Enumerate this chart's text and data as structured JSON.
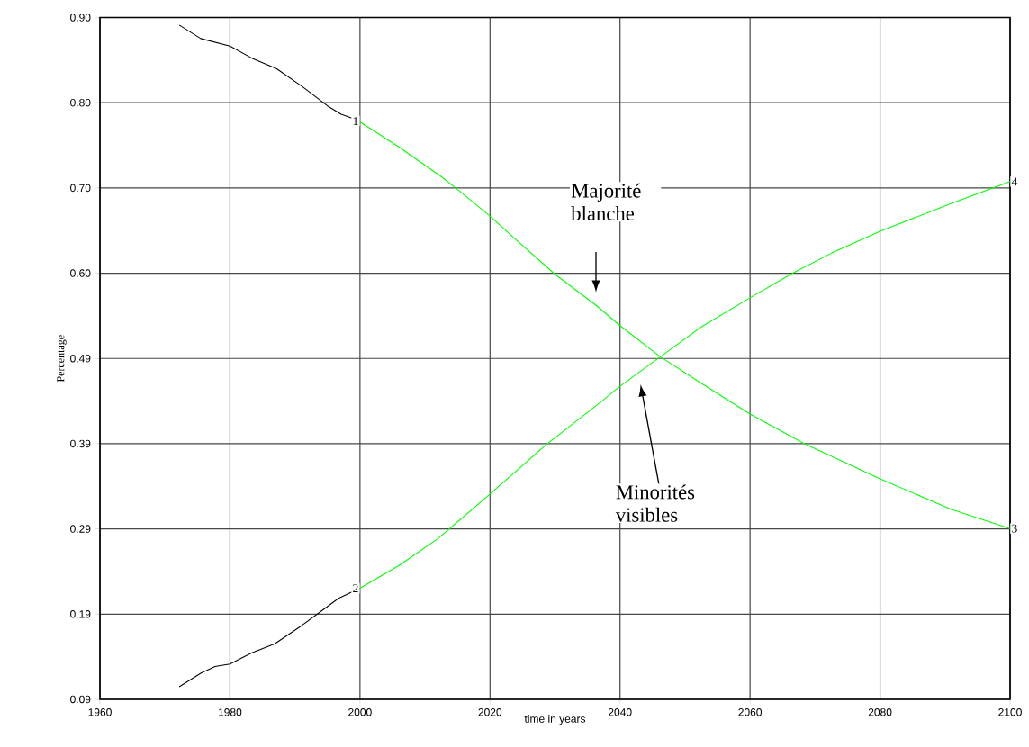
{
  "chart_data": {
    "type": "line",
    "xlabel": "time in years",
    "ylabel": "Percentage",
    "xlim": [
      1960,
      2100
    ],
    "ylim": [
      0.09,
      0.9
    ],
    "xticks": [
      1960,
      1980,
      2000,
      2020,
      2040,
      2060,
      2080,
      2100
    ],
    "yticks": [
      {
        "value": 0.09,
        "label": "0.09"
      },
      {
        "value": 0.19125,
        "label": "0.19"
      },
      {
        "value": 0.2925,
        "label": "0.29"
      },
      {
        "value": 0.39375,
        "label": "0.39"
      },
      {
        "value": 0.495,
        "label": "0.49"
      },
      {
        "value": 0.59625,
        "label": "0.60"
      },
      {
        "value": 0.6975,
        "label": "0.70"
      },
      {
        "value": 0.79875,
        "label": "0.80"
      },
      {
        "value": 0.9,
        "label": "0.90"
      }
    ],
    "grid": true,
    "marker": "none",
    "line_style": "solid",
    "series": [
      {
        "name": "1",
        "color": "#000000",
        "x": [
          1972.2,
          1975.5,
          1980,
          1983.3,
          1987.2,
          1991.1,
          1995,
          1997.1,
          2000
        ],
        "values": [
          0.891,
          0.875,
          0.866,
          0.852,
          0.839,
          0.818,
          0.795,
          0.785,
          0.777
        ]
      },
      {
        "name": "2",
        "color": "#000000",
        "x": [
          1972.2,
          1975.5,
          1977.7,
          1980,
          1983.3,
          1986.9,
          1991.1,
          1993.9,
          1996.7,
          2000
        ],
        "values": [
          0.105,
          0.121,
          0.129,
          0.132,
          0.145,
          0.156,
          0.178,
          0.194,
          0.21,
          0.222
        ]
      },
      {
        "name": "3",
        "color": "#00ff00",
        "x": [
          2000,
          2006,
          2012.5,
          2014.8,
          2020,
          2024,
          2030,
          2036.5,
          2040,
          2046.2,
          2052.6,
          2060,
          2068.3,
          2080,
          2090.9,
          2100
        ],
        "values": [
          0.776,
          0.746,
          0.711,
          0.697,
          0.664,
          0.636,
          0.595,
          0.557,
          0.534,
          0.497,
          0.465,
          0.429,
          0.394,
          0.352,
          0.316,
          0.293
        ]
      },
      {
        "name": "4",
        "color": "#00ff00",
        "x": [
          2000,
          2006,
          2012,
          2020,
          2028.7,
          2037,
          2040,
          2046.2,
          2052.6,
          2060,
          2066.5,
          2072.5,
          2080,
          2090.9,
          2100
        ],
        "values": [
          0.222,
          0.249,
          0.281,
          0.334,
          0.393,
          0.443,
          0.462,
          0.497,
          0.533,
          0.567,
          0.596,
          0.62,
          0.646,
          0.679,
          0.705
        ]
      }
    ],
    "annotations": [
      "Majorité blanche",
      "Minorités visibles"
    ]
  }
}
